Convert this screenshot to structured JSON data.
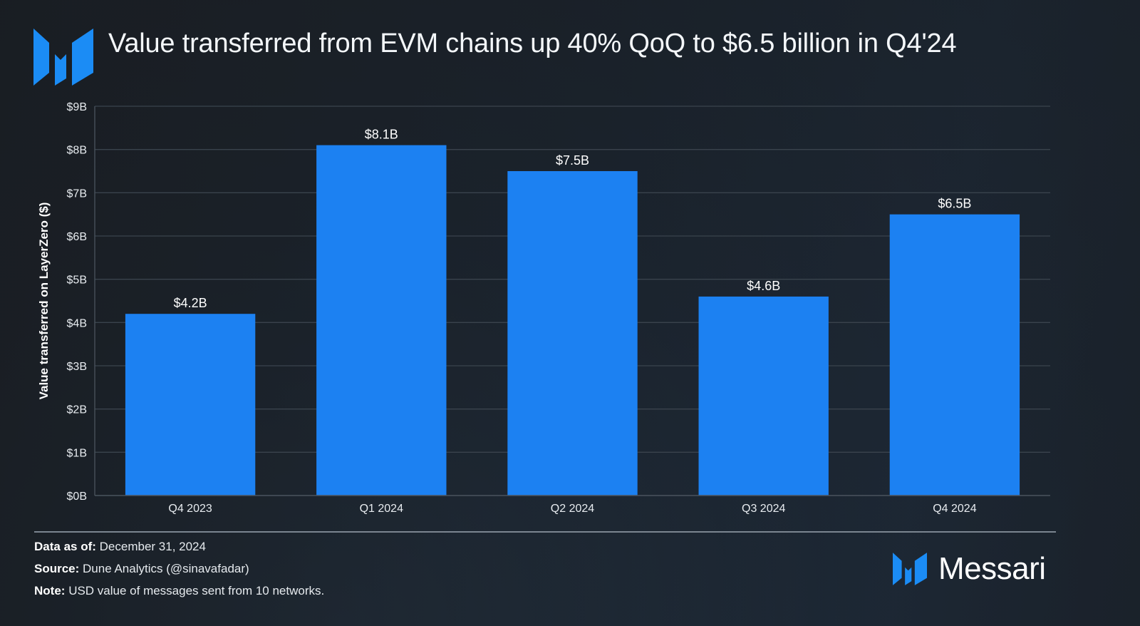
{
  "header": {
    "title": "Value transferred from EVM chains up 40% QoQ to $6.5 billion in Q4'24",
    "logo_icon": "messari-logo-icon"
  },
  "colors": {
    "bar": "#1c81f2",
    "grid": "#3a434d",
    "axis": "#4b545e",
    "logo": "#1b8cf5"
  },
  "chart_data": {
    "type": "bar",
    "title": "Value transferred from EVM chains up 40% QoQ to $6.5 billion in Q4'24",
    "xlabel": "",
    "ylabel": "Value transferred on LayerZero ($)",
    "categories": [
      "Q4 2023",
      "Q1 2024",
      "Q2 2024",
      "Q3 2024",
      "Q4 2024"
    ],
    "values": [
      4.2,
      8.1,
      7.5,
      4.6,
      6.5
    ],
    "value_unit": "billion USD",
    "data_labels": [
      "$4.2B",
      "$8.1B",
      "$7.5B",
      "$4.6B",
      "$6.5B"
    ],
    "ylim": [
      0,
      9
    ],
    "yticks": [
      0,
      1,
      2,
      3,
      4,
      5,
      6,
      7,
      8,
      9
    ],
    "ytick_labels": [
      "$0B",
      "$1B",
      "$2B",
      "$3B",
      "$4B",
      "$5B",
      "$6B",
      "$7B",
      "$8B",
      "$9B"
    ],
    "grid": true,
    "legend": "none"
  },
  "footer": {
    "data_as_of_label": "Data as of:",
    "data_as_of_value": "December 31, 2024",
    "source_label": "Source:",
    "source_value": "Dune Analytics (@sinavafadar)",
    "note_label": "Note:",
    "note_value": "USD value of messages sent from 10 networks.",
    "brand_name": "Messari"
  }
}
